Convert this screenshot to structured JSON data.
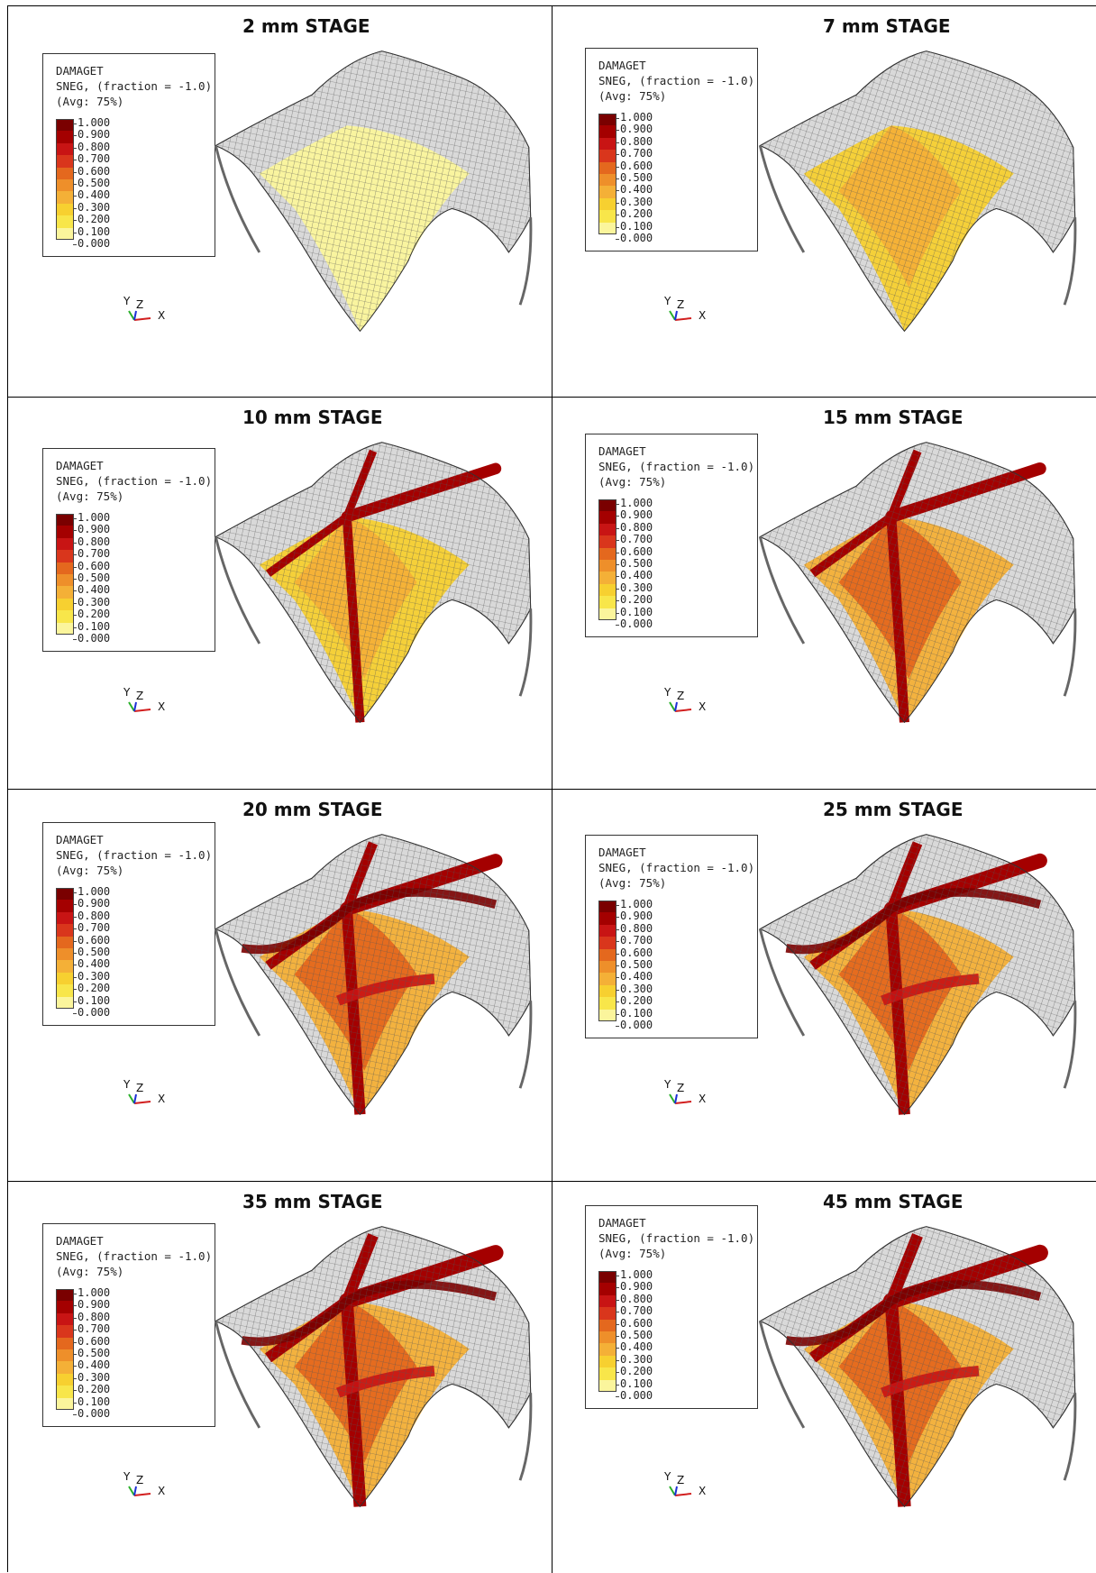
{
  "legend": {
    "variable": "DAMAGET",
    "line2": "SNEG, (fraction = -1.0)",
    "line3": "(Avg: 75%)",
    "values": [
      "1.000",
      "0.900",
      "0.800",
      "0.700",
      "0.600",
      "0.500",
      "0.400",
      "0.300",
      "0.200",
      "0.100",
      "0.000"
    ],
    "colors": [
      "#7a0000",
      "#a40000",
      "#c81414",
      "#d9361c",
      "#e4681e",
      "#ee8f2a",
      "#f4b037",
      "#f7d030",
      "#f8e64a",
      "#fbf59c",
      "#ffffff"
    ]
  },
  "triad": {
    "y": "Y",
    "z": "Z",
    "x": "X",
    "colors": {
      "y": "#2bb02b",
      "z": "#1c2fd6",
      "x": "#d21f1f"
    }
  },
  "panels": [
    {
      "title": "2 mm STAGE",
      "damage_level": 0.15
    },
    {
      "title": "7 mm STAGE",
      "damage_level": 0.35
    },
    {
      "title": "10 mm STAGE",
      "damage_level": 0.5
    },
    {
      "title": "15 mm STAGE",
      "damage_level": 0.58
    },
    {
      "title": "20 mm STAGE",
      "damage_level": 0.7
    },
    {
      "title": "25 mm STAGE",
      "damage_level": 0.75
    },
    {
      "title": "35 mm STAGE",
      "damage_level": 0.85
    },
    {
      "title": "45 mm STAGE",
      "damage_level": 0.9
    }
  ]
}
